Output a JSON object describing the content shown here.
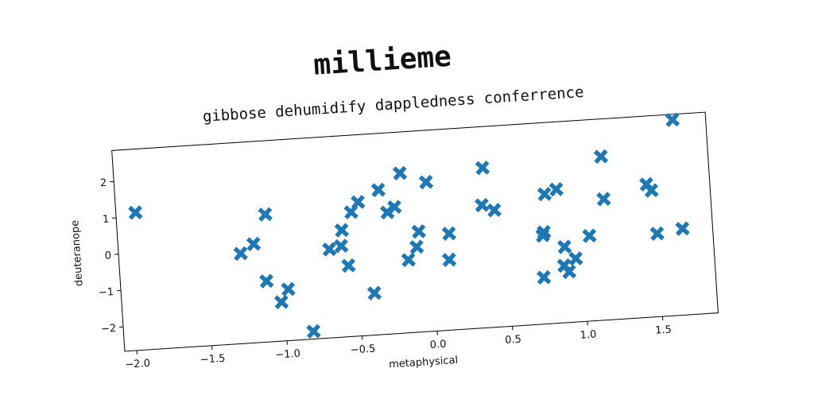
{
  "chart_data": {
    "type": "scatter",
    "title": "millieme",
    "subtitle": "gibbose dehumidify dappledness conferrence",
    "x_label": "metaphysical",
    "y_label": "deuteranope",
    "color": "#1f77b4",
    "marker": "X",
    "x": [
      -1.95,
      1.65,
      -1.27,
      -1.18,
      -1.09,
      -1.11,
      -1.02,
      -0.97,
      -0.82,
      -0.68,
      -0.6,
      -0.59,
      -0.56,
      -0.52,
      -0.47,
      -0.4,
      -0.33,
      -0.28,
      -0.23,
      -0.18,
      -0.16,
      -0.1,
      -0.08,
      -0.01,
      0.11,
      0.12,
      0.37,
      0.35,
      0.43,
      0.77,
      0.74,
      0.75,
      0.73,
      0.85,
      0.87,
      0.88,
      0.9,
      0.95,
      1.05,
      1.16,
      1.16,
      1.45,
      1.48,
      1.5,
      1.67
    ],
    "y": [
      1.11,
      2.7,
      -0.2,
      0.04,
      0.83,
      -1.0,
      -1.6,
      -1.26,
      -2.46,
      -0.24,
      -0.17,
      0.26,
      -0.72,
      0.74,
      1.0,
      -1.52,
      1.3,
      0.67,
      0.8,
      1.72,
      -0.67,
      -0.33,
      0.09,
      1.43,
      -0.74,
      -0.02,
      1.72,
      0.7,
      0.54,
      0.89,
      -0.24,
      -0.15,
      -1.39,
      1.0,
      -1.1,
      -0.59,
      -1.28,
      -0.93,
      -0.33,
      1.82,
      0.65,
      0.98,
      0.8,
      -0.39,
      -0.3
    ],
    "xlim": [
      -2.08,
      1.87
    ],
    "ylim": [
      -2.67,
      2.85
    ],
    "xticks": [
      {
        "value": -2.0,
        "label": "−2.0"
      },
      {
        "value": -1.5,
        "label": "−1.5"
      },
      {
        "value": -1.0,
        "label": "−1.0"
      },
      {
        "value": -0.5,
        "label": "−0.5"
      },
      {
        "value": 0.0,
        "label": "0.0"
      },
      {
        "value": 0.5,
        "label": "0.5"
      },
      {
        "value": 1.0,
        "label": "1.0"
      },
      {
        "value": 1.5,
        "label": "1.5"
      }
    ],
    "yticks": [
      {
        "value": -2,
        "label": "−2"
      },
      {
        "value": -1,
        "label": "−1"
      },
      0,
      1,
      2
    ],
    "rotation_deg": -3.7
  }
}
